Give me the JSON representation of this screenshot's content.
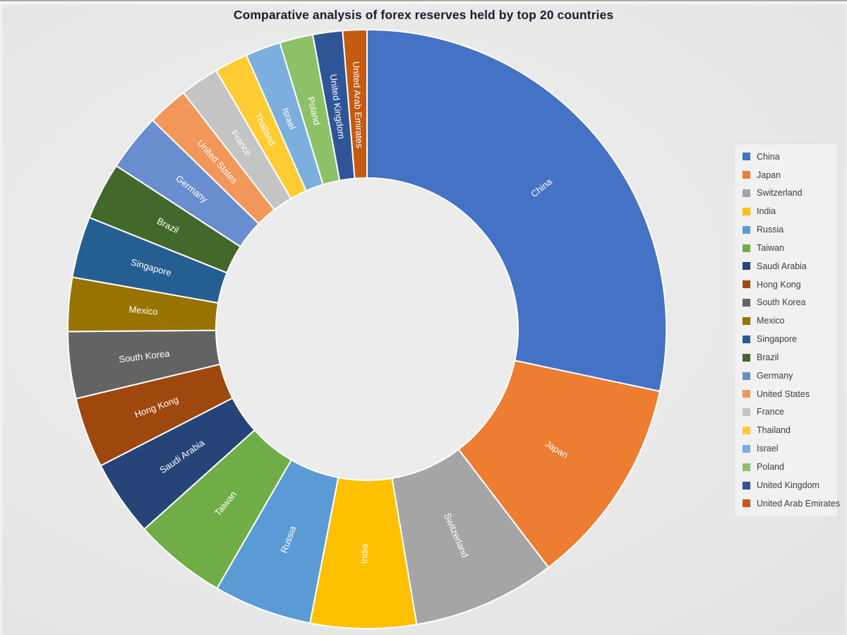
{
  "chart_data": {
    "type": "pie",
    "subtype": "donut",
    "title": "Comparative analysis of forex reserves held by top 20 countries",
    "start_angle_deg": 0,
    "direction": "clockwise",
    "inner_radius_ratio": 0.505,
    "legend_position": "right",
    "slice_border_color": "#ffffff",
    "slice_label_color": "#ffffff",
    "title_color": "#1b1b30",
    "background_color": "#e4e4e4",
    "series": [
      {
        "label": "China",
        "value_percent": 28.3,
        "color": "#4472C4"
      },
      {
        "label": "Japan",
        "value_percent": 11.3,
        "color": "#ED7D31"
      },
      {
        "label": "Switzerland",
        "value_percent": 7.7,
        "color": "#A5A5A5"
      },
      {
        "label": "India",
        "value_percent": 5.7,
        "color": "#FFC000"
      },
      {
        "label": "Russia",
        "value_percent": 5.3,
        "color": "#5B9BD5"
      },
      {
        "label": "Taiwan",
        "value_percent": 5.0,
        "color": "#70AD47"
      },
      {
        "label": "Saudi Arabia",
        "value_percent": 4.1,
        "color": "#264478"
      },
      {
        "label": "Hong Kong",
        "value_percent": 3.8,
        "color": "#9E480E"
      },
      {
        "label": "South Korea",
        "value_percent": 3.6,
        "color": "#636363"
      },
      {
        "label": "Mexico",
        "value_percent": 2.9,
        "color": "#997300"
      },
      {
        "label": "Singapore",
        "value_percent": 3.3,
        "color": "#255E91"
      },
      {
        "label": "Brazil",
        "value_percent": 3.1,
        "color": "#43682B"
      },
      {
        "label": "Germany",
        "value_percent": 3.1,
        "color": "#698ED0"
      },
      {
        "label": "United States",
        "value_percent": 2.2,
        "color": "#F1975A"
      },
      {
        "label": "France",
        "value_percent": 2.1,
        "color": "#C4C4C4"
      },
      {
        "label": "Thailand",
        "value_percent": 1.8,
        "color": "#FFCD33"
      },
      {
        "label": "Israel",
        "value_percent": 1.9,
        "color": "#7CAFDD"
      },
      {
        "label": "Poland",
        "value_percent": 1.8,
        "color": "#8CC168"
      },
      {
        "label": "United Kingdom",
        "value_percent": 1.6,
        "color": "#2F5597"
      },
      {
        "label": "United Arab Emirates",
        "value_percent": 1.3,
        "color": "#C55A11"
      }
    ]
  }
}
